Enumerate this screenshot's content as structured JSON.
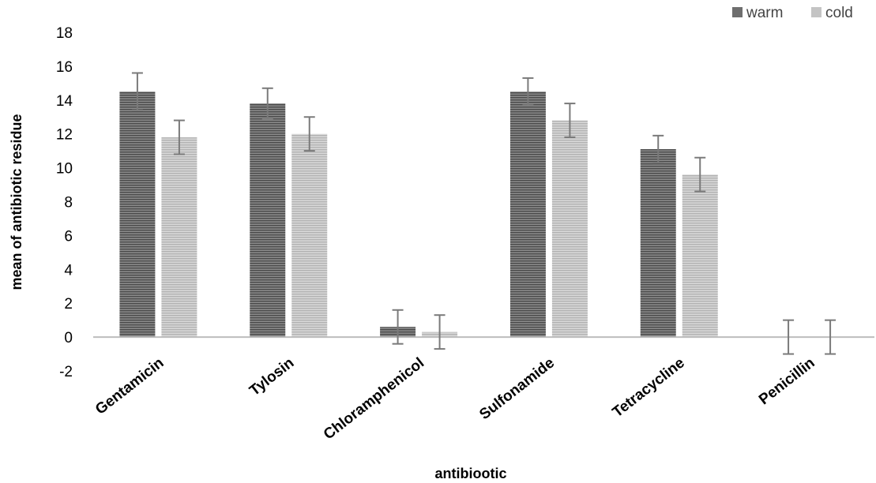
{
  "chart_data": {
    "type": "bar",
    "title": "",
    "xlabel": "antibiootic",
    "ylabel": "mean of antibiotic residue",
    "ylim": [
      -2,
      18
    ],
    "yticks": [
      -2,
      0,
      2,
      4,
      6,
      8,
      10,
      12,
      14,
      16,
      18
    ],
    "categories": [
      "Gentamicin",
      "Tylosin",
      "Chloramphenicol",
      "Sulfonamide",
      "Tetracycline",
      "Penicillin"
    ],
    "series": [
      {
        "name": "warm",
        "color": "#6e6e6e",
        "values": [
          14.5,
          13.8,
          0.6,
          14.5,
          11.1,
          0
        ],
        "error": [
          1.1,
          0.9,
          1.0,
          0.8,
          0.8,
          1.0
        ]
      },
      {
        "name": "cold",
        "color": "#c4c4c4",
        "values": [
          11.8,
          12.0,
          0.3,
          12.8,
          9.6,
          0
        ],
        "error": [
          1.0,
          1.0,
          1.0,
          1.0,
          1.0,
          1.0
        ]
      }
    ],
    "legend_position": "top-right",
    "grid": false,
    "error_bars": true
  }
}
